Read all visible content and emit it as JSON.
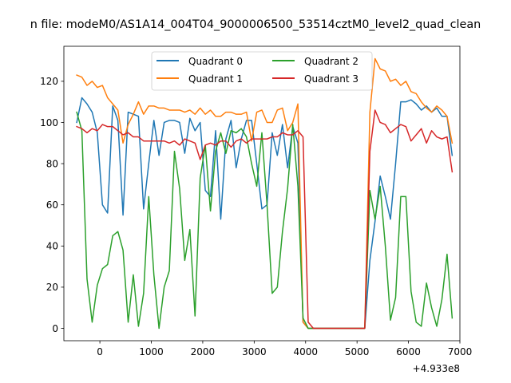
{
  "chart_data": {
    "type": "line",
    "title": "n file: modeM0/AS1A14_004T04_9000006500_53514cztM0_level2_quad_clean",
    "xlabel": "",
    "ylabel": "",
    "x_offset_label": "+4.933e8",
    "xlim": [
      -700,
      7000
    ],
    "ylim": [
      -6,
      137
    ],
    "x_ticks": [
      0,
      1000,
      2000,
      3000,
      4000,
      5000,
      6000,
      7000
    ],
    "x_tick_labels": [
      "0",
      "1000",
      "2000",
      "3000",
      "4000",
      "5000",
      "6000",
      "7000"
    ],
    "y_ticks": [
      0,
      20,
      40,
      60,
      80,
      100,
      120
    ],
    "y_tick_labels": [
      "0",
      "20",
      "40",
      "60",
      "80",
      "100",
      "120"
    ],
    "grid": false,
    "legend_position": "upper-center",
    "legend_columns": 2,
    "x": [
      -450,
      -350,
      -250,
      -150,
      -50,
      50,
      150,
      250,
      350,
      450,
      550,
      650,
      750,
      850,
      950,
      1050,
      1150,
      1250,
      1350,
      1450,
      1550,
      1650,
      1750,
      1850,
      1950,
      2050,
      2150,
      2250,
      2350,
      2450,
      2550,
      2650,
      2750,
      2850,
      2950,
      3050,
      3150,
      3250,
      3350,
      3450,
      3550,
      3650,
      3750,
      3850,
      3950,
      4050,
      4150,
      4250,
      4350,
      4450,
      4550,
      4650,
      4750,
      4850,
      4950,
      5050,
      5150,
      5250,
      5350,
      5450,
      5550,
      5650,
      5750,
      5850,
      5950,
      6050,
      6150,
      6250,
      6350,
      6450,
      6550,
      6650,
      6750,
      6850
    ],
    "series": [
      {
        "name": "Quadrant 0",
        "color": "#1f77b4",
        "values": [
          100,
          112,
          109,
          105,
          95,
          60,
          56,
          108,
          101,
          55,
          105,
          104,
          103,
          58,
          80,
          101,
          84,
          100,
          101,
          101,
          100,
          85,
          102,
          96,
          100,
          67,
          64,
          96,
          53,
          92,
          101,
          78,
          92,
          101,
          101,
          80,
          58,
          60,
          95,
          84,
          99,
          78,
          98,
          90,
          3,
          0,
          0,
          0,
          0,
          0,
          0,
          0,
          0,
          0,
          0,
          0,
          0,
          33,
          52,
          74,
          64,
          53,
          80,
          110,
          110,
          111,
          109,
          106,
          108,
          105,
          107,
          103,
          103,
          84
        ]
      },
      {
        "name": "Quadrant 1",
        "color": "#ff7f0e",
        "values": [
          123,
          122,
          118,
          120,
          117,
          118,
          112,
          109,
          106,
          90,
          99,
          104,
          110,
          104,
          108,
          108,
          107,
          107,
          106,
          106,
          106,
          105,
          106,
          104,
          107,
          104,
          106,
          103,
          103,
          105,
          105,
          104,
          104,
          105,
          91,
          105,
          106,
          100,
          100,
          106,
          107,
          96,
          100,
          109,
          3,
          0,
          0,
          0,
          0,
          0,
          0,
          0,
          0,
          0,
          0,
          0,
          0,
          105,
          131,
          126,
          125,
          120,
          121,
          118,
          120,
          115,
          114,
          110,
          107,
          105,
          108,
          106,
          103,
          90
        ]
      },
      {
        "name": "Quadrant 2",
        "color": "#2ca02c",
        "values": [
          105,
          96,
          24,
          3,
          21,
          29,
          31,
          45,
          47,
          38,
          3,
          26,
          1,
          17,
          64,
          26,
          0,
          20,
          28,
          86,
          68,
          33,
          48,
          6,
          73,
          89,
          57,
          86,
          95,
          85,
          96,
          95,
          97,
          93,
          80,
          69,
          95,
          60,
          17,
          20,
          47,
          68,
          99,
          69,
          5,
          0,
          0,
          0,
          0,
          0,
          0,
          0,
          0,
          0,
          0,
          0,
          0,
          67,
          53,
          69,
          40,
          4,
          15,
          64,
          64,
          18,
          3,
          1,
          22,
          10,
          1,
          14,
          36,
          5
        ]
      },
      {
        "name": "Quadrant 3",
        "color": "#d62728",
        "values": [
          98,
          97,
          95,
          97,
          96,
          99,
          98,
          98,
          96,
          94,
          95,
          93,
          93,
          91,
          91,
          91,
          91,
          91,
          90,
          91,
          89,
          92,
          91,
          90,
          82,
          89,
          90,
          89,
          91,
          91,
          88,
          91,
          92,
          90,
          92,
          92,
          92,
          92,
          93,
          93,
          95,
          94,
          94,
          96,
          93,
          3,
          0,
          0,
          0,
          0,
          0,
          0,
          0,
          0,
          0,
          0,
          0,
          86,
          106,
          100,
          99,
          95,
          97,
          99,
          98,
          91,
          94,
          97,
          90,
          96,
          93,
          92,
          93,
          76
        ]
      }
    ]
  }
}
